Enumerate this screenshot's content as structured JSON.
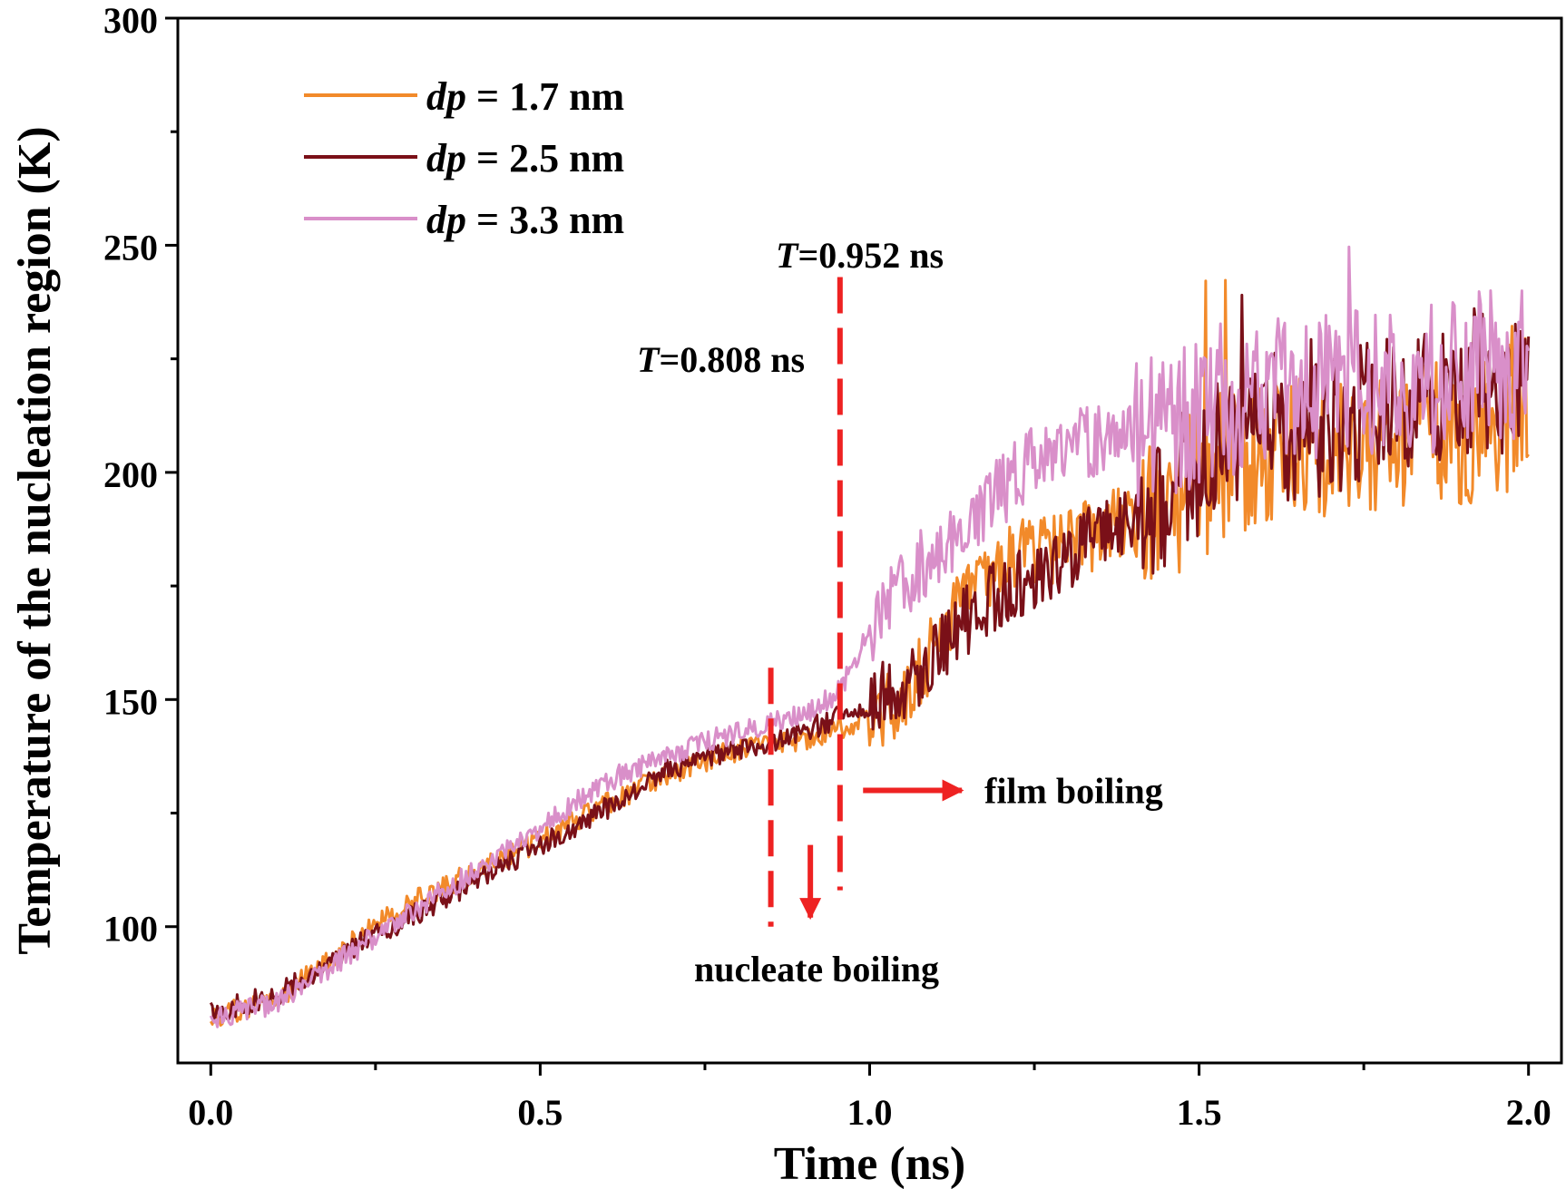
{
  "chart_data": {
    "type": "line",
    "title": "",
    "xlabel": "Time (ns)",
    "ylabel": "Temperature of the nucleation region (K)",
    "xlim": [
      -0.05,
      2.05
    ],
    "ylim": [
      70,
      300
    ],
    "xticks": [
      0.0,
      0.5,
      1.0,
      1.5,
      2.0
    ],
    "xtick_labels": [
      "0.0",
      "0.5",
      "1.0",
      "1.5",
      "2.0"
    ],
    "yticks": [
      100,
      150,
      200,
      250,
      300
    ],
    "ytick_labels": [
      "100",
      "150",
      "200",
      "250",
      "300"
    ],
    "grid": false,
    "legend_position": "top-left",
    "legend_prefix": "dp",
    "series": [
      {
        "name": "= 1.7 nm",
        "color": "#f28a2a",
        "x": [
          0.0,
          0.1,
          0.2,
          0.3,
          0.4,
          0.5,
          0.6,
          0.7,
          0.8,
          0.9,
          1.0,
          1.05,
          1.1,
          1.15,
          1.2,
          1.25,
          1.3,
          1.35,
          1.4,
          1.45,
          1.5,
          1.55,
          1.6,
          1.65,
          1.7,
          1.75,
          1.8,
          1.85,
          1.9,
          1.95,
          2.0
        ],
        "y": [
          80,
          84,
          95,
          105,
          112,
          119,
          127,
          134,
          139,
          141,
          146,
          149,
          162,
          175,
          180,
          183,
          184,
          187,
          190,
          193,
          198,
          201,
          203,
          205,
          206,
          207,
          208,
          209,
          210,
          211,
          213
        ]
      },
      {
        "name": "= 2.5 nm",
        "color": "#7a1018",
        "x": [
          0.0,
          0.1,
          0.2,
          0.3,
          0.4,
          0.5,
          0.6,
          0.7,
          0.8,
          0.9,
          1.0,
          1.05,
          1.1,
          1.15,
          1.2,
          1.25,
          1.3,
          1.35,
          1.4,
          1.45,
          1.5,
          1.55,
          1.6,
          1.65,
          1.7,
          1.75,
          1.8,
          1.85,
          1.9,
          1.95,
          2.0
        ],
        "y": [
          81,
          85,
          94,
          102,
          110,
          118,
          126,
          135,
          139,
          143,
          149,
          153,
          160,
          168,
          174,
          178,
          182,
          186,
          191,
          196,
          203,
          207,
          209,
          211,
          212,
          213,
          215,
          217,
          219,
          220,
          222
        ]
      },
      {
        "name": "= 3.3 nm",
        "color": "#d98fc9",
        "x": [
          0.0,
          0.1,
          0.2,
          0.3,
          0.4,
          0.5,
          0.6,
          0.7,
          0.8,
          0.9,
          0.95,
          1.0,
          1.05,
          1.1,
          1.15,
          1.2,
          1.25,
          1.3,
          1.35,
          1.4,
          1.45,
          1.5,
          1.55,
          1.6,
          1.65,
          1.7,
          1.75,
          1.8,
          1.85,
          1.9,
          1.95,
          2.0
        ],
        "y": [
          80,
          83,
          93,
          103,
          112,
          122,
          132,
          138,
          143,
          147,
          151,
          165,
          175,
          183,
          189,
          196,
          203,
          206,
          207,
          208,
          210,
          212,
          214,
          215,
          217,
          218,
          219,
          220,
          221,
          222,
          224,
          226
        ]
      }
    ],
    "annotations": [
      {
        "text": "=0.808 ns",
        "prefix": "T",
        "x": 0.85,
        "y_range": [
          100,
          157
        ],
        "color": "#ee2222"
      },
      {
        "text": "=0.952 ns",
        "prefix": "T",
        "x": 0.955,
        "y_range": [
          108,
          243
        ],
        "color": "#ee2222"
      },
      {
        "text": "film boiling",
        "arrow": "right",
        "x_range": [
          0.99,
          1.14
        ],
        "y": 130,
        "color": "#ee2222"
      },
      {
        "text": "nucleate boiling",
        "arrow": "down",
        "x": 0.91,
        "y_range": [
          118,
          102
        ],
        "color": "#ee2222"
      }
    ]
  }
}
